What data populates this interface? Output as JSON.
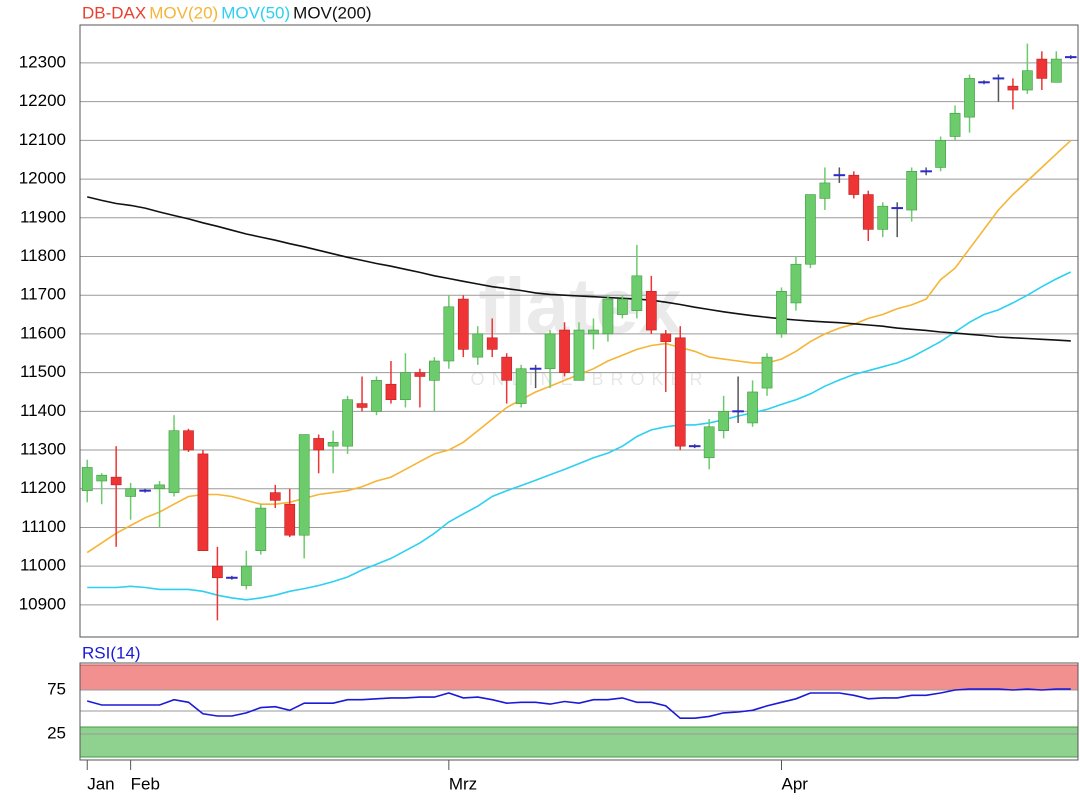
{
  "chart_data": [
    {
      "type": "candlestick",
      "name": "DB-DAX",
      "color": "#e8402f",
      "up_color": "#6ccc6c",
      "down_color": "#ee3434",
      "flat_color": "#2a2ad0",
      "watermark": [
        "flatex",
        "ONLINE BROKER"
      ],
      "categories": [
        "Jan",
        null,
        null,
        "Feb",
        null,
        null,
        null,
        null,
        null,
        null,
        null,
        null,
        null,
        null,
        null,
        null,
        null,
        null,
        null,
        null,
        null,
        null,
        null,
        null,
        null,
        "Mrz",
        null,
        null,
        null,
        null,
        null,
        null,
        null,
        null,
        null,
        null,
        null,
        null,
        null,
        null,
        null,
        null,
        null,
        null,
        null,
        null,
        null,
        null,
        "Apr",
        null,
        null,
        null,
        null,
        null,
        null,
        null,
        null,
        null,
        null,
        null,
        null,
        null,
        null,
        null,
        null,
        null,
        null,
        null,
        null
      ],
      "open": [
        11195,
        11220,
        11230,
        11180,
        11195,
        11200,
        11190,
        11350,
        11290,
        11000,
        10970,
        10950,
        11040,
        11190,
        11160,
        11080,
        11330,
        11310,
        11310,
        11420,
        11400,
        11470,
        11430,
        11500,
        11480,
        11530,
        11690,
        11540,
        11590,
        11540,
        11420,
        11510,
        11510,
        11610,
        11480,
        11600,
        11600,
        11650,
        11660,
        11710,
        11600,
        11590,
        11310,
        11280,
        11350,
        11400,
        11370,
        11460,
        11600,
        11680,
        11780,
        11950,
        12010,
        12010,
        11960,
        11870,
        11925,
        11920,
        12020,
        12030,
        12110,
        12160,
        12250,
        12260,
        12240,
        12230,
        12310,
        12250,
        12315
      ],
      "high": [
        11275,
        11240,
        11310,
        11215,
        11200,
        11220,
        11390,
        11355,
        11300,
        11050,
        10975,
        11040,
        11160,
        11210,
        11200,
        11340,
        11340,
        11350,
        11440,
        11490,
        11490,
        11530,
        11550,
        11510,
        11540,
        11700,
        11700,
        11620,
        11640,
        11550,
        11520,
        11520,
        11610,
        11630,
        11630,
        11640,
        11700,
        11700,
        11830,
        11750,
        11610,
        11620,
        11315,
        11380,
        11440,
        11490,
        11480,
        11550,
        11720,
        11800,
        11960,
        12030,
        12030,
        12020,
        11970,
        11940,
        11940,
        12030,
        12030,
        12110,
        12190,
        12270,
        12255,
        12270,
        12260,
        12350,
        12330,
        12330,
        12320
      ],
      "low": [
        11165,
        11160,
        11050,
        11120,
        11190,
        11100,
        11180,
        11295,
        11040,
        10860,
        10965,
        10940,
        11030,
        11150,
        11075,
        11020,
        11240,
        11240,
        11290,
        11400,
        11390,
        11420,
        11410,
        11410,
        11400,
        11510,
        11540,
        11520,
        11540,
        11420,
        11410,
        11460,
        11460,
        11490,
        11480,
        11560,
        11580,
        11640,
        11640,
        11600,
        11450,
        11300,
        11305,
        11250,
        11330,
        11370,
        11360,
        11440,
        11590,
        11660,
        11770,
        11920,
        11990,
        11950,
        11840,
        11850,
        11850,
        11890,
        12010,
        12020,
        12100,
        12120,
        12245,
        12200,
        12180,
        12220,
        12230,
        12250,
        12310
      ],
      "close": [
        11255,
        11235,
        11210,
        11200,
        11195,
        11210,
        11350,
        11300,
        11040,
        10970,
        10970,
        11000,
        11150,
        11170,
        11080,
        11340,
        11300,
        11320,
        11430,
        11410,
        11480,
        11430,
        11500,
        11490,
        11530,
        11670,
        11560,
        11600,
        11560,
        11480,
        11510,
        11510,
        11600,
        11500,
        11610,
        11610,
        11690,
        11690,
        11750,
        11610,
        11580,
        11310,
        11310,
        11360,
        11400,
        11400,
        11450,
        11540,
        11710,
        11780,
        11960,
        11990,
        12010,
        11960,
        11870,
        11930,
        11925,
        12020,
        12020,
        12100,
        12170,
        12260,
        12250,
        12260,
        12230,
        12280,
        12260,
        12310,
        12315
      ],
      "series": [
        {
          "name": "MOV(20)",
          "color": "#f5b536",
          "values": [
            11035,
            11060,
            11085,
            11105,
            11125,
            11140,
            11160,
            11180,
            11185,
            11185,
            11180,
            11170,
            11160,
            11160,
            11165,
            11175,
            11185,
            11190,
            11195,
            11205,
            11220,
            11230,
            11250,
            11270,
            11290,
            11300,
            11320,
            11350,
            11380,
            11410,
            11430,
            11450,
            11465,
            11480,
            11495,
            11510,
            11530,
            11545,
            11560,
            11570,
            11575,
            11565,
            11555,
            11540,
            11535,
            11530,
            11525,
            11525,
            11535,
            11555,
            11580,
            11600,
            11615,
            11625,
            11640,
            11650,
            11665,
            11675,
            11690,
            11740,
            11770,
            11820,
            11870,
            11920,
            11960,
            11995,
            12030,
            12065,
            12100
          ]
        },
        {
          "name": "MOV(50)",
          "color": "#2ed0f0",
          "values": [
            10945,
            10945,
            10945,
            10948,
            10945,
            10940,
            10940,
            10940,
            10935,
            10925,
            10918,
            10913,
            10918,
            10925,
            10935,
            10942,
            10950,
            10960,
            10972,
            10990,
            11005,
            11020,
            11040,
            11060,
            11085,
            11114,
            11135,
            11155,
            11180,
            11195,
            11208,
            11222,
            11236,
            11250,
            11265,
            11280,
            11292,
            11310,
            11335,
            11352,
            11360,
            11365,
            11365,
            11370,
            11378,
            11388,
            11396,
            11405,
            11418,
            11430,
            11445,
            11465,
            11481,
            11495,
            11505,
            11515,
            11525,
            11540,
            11560,
            11580,
            11605,
            11630,
            11650,
            11662,
            11680,
            11700,
            11722,
            11742,
            11760
          ]
        },
        {
          "name": "MOV(200)",
          "color": "#111111",
          "values": [
            11954,
            11945,
            11937,
            11932,
            11925,
            11915,
            11906,
            11897,
            11887,
            11878,
            11868,
            11858,
            11850,
            11842,
            11833,
            11825,
            11816,
            11807,
            11798,
            11790,
            11782,
            11775,
            11767,
            11759,
            11750,
            11743,
            11736,
            11729,
            11722,
            11717,
            11712,
            11706,
            11702,
            11700,
            11698,
            11696,
            11694,
            11692,
            11690,
            11687,
            11682,
            11676,
            11669,
            11663,
            11657,
            11652,
            11647,
            11643,
            11639,
            11636,
            11633,
            11631,
            11629,
            11626,
            11623,
            11620,
            11615,
            11612,
            11609,
            11605,
            11602,
            11599,
            11596,
            11592,
            11590,
            11588,
            11586,
            11584,
            11582
          ]
        }
      ],
      "ylim": [
        10817,
        12398
      ],
      "yticks": [
        10900,
        11000,
        11100,
        11200,
        11300,
        11400,
        11500,
        11600,
        11700,
        11800,
        11900,
        12000,
        12100,
        12200,
        12300
      ],
      "grid": true
    },
    {
      "type": "line",
      "series": [
        {
          "name": "RSI(14)",
          "color": "#1a1ad8",
          "values": [
            62.5,
            58,
            58,
            58,
            58,
            58,
            64,
            61,
            48,
            45.5,
            45.5,
            49,
            55,
            56,
            52,
            60,
            60,
            60,
            64,
            64,
            65,
            66,
            66,
            67,
            67,
            71.6,
            66,
            67,
            64,
            60,
            61,
            61,
            59,
            62,
            60,
            64,
            64,
            66,
            61,
            61,
            57,
            43,
            43,
            45,
            49,
            50,
            52,
            57,
            61,
            65,
            71.6,
            71.6,
            71.6,
            69,
            65,
            66,
            66,
            69,
            69,
            71.6,
            75,
            76,
            76,
            76,
            75,
            76,
            75,
            76,
            76
          ]
        }
      ],
      "ylim": [
        -4.5,
        105.7
      ],
      "yticks": [
        25,
        75
      ],
      "grid": true
    }
  ]
}
